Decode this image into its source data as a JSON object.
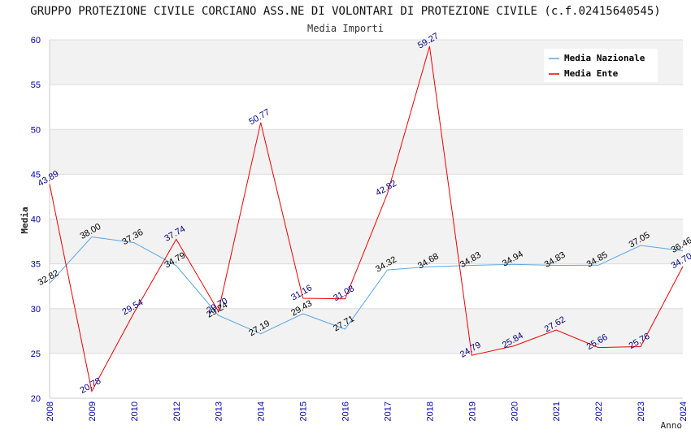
{
  "chart_data": {
    "type": "line",
    "title": "GRUPPO PROTEZIONE CIVILE CORCIANO ASS.NE DI VOLONTARI DI PROTEZIONE CIVILE (c.f.02415640545)",
    "subtitle": "Media Importi",
    "xlabel": "Anno",
    "ylabel": "Media",
    "ylim": [
      20,
      60
    ],
    "yticks": [
      20,
      25,
      30,
      35,
      40,
      45,
      50,
      55,
      60
    ],
    "x": [
      "2008",
      "2009",
      "2010",
      "2012",
      "2013",
      "2014",
      "2015",
      "2016",
      "2017",
      "2018",
      "2019",
      "2020",
      "2021",
      "2022",
      "2023",
      "2024"
    ],
    "series": [
      {
        "name": "Media Nazionale",
        "color": "#5aa5e6",
        "label_color": "#000000",
        "values": [
          32.82,
          38.0,
          37.36,
          34.79,
          29.24,
          27.19,
          29.43,
          27.71,
          34.32,
          34.68,
          34.83,
          34.94,
          34.83,
          34.85,
          37.05,
          36.46
        ],
        "labels": [
          "32.82",
          "38.00",
          "37.36",
          "34.79",
          "29.24",
          "27.19",
          "29.43",
          "27.71",
          "34.32",
          "34.68",
          "34.83",
          "34.94",
          "34.83",
          "34.85",
          "37.05",
          "36.46"
        ]
      },
      {
        "name": "Media Ente",
        "color": "#ee0000",
        "label_color": "#000080",
        "values": [
          43.89,
          20.78,
          29.54,
          37.74,
          29.7,
          50.77,
          31.16,
          31.08,
          42.82,
          59.27,
          24.79,
          25.84,
          27.62,
          25.66,
          25.76,
          34.7
        ],
        "labels": [
          "43.89",
          "20.78",
          "29.54",
          "37.74",
          "29.70",
          "50.77",
          "31.16",
          "31.08",
          "42.82",
          "59.27",
          "24.79",
          "25.84",
          "27.62",
          "25.66",
          "25.76",
          "34.70"
        ]
      }
    ],
    "legend_position": "top-right",
    "grid": true
  }
}
